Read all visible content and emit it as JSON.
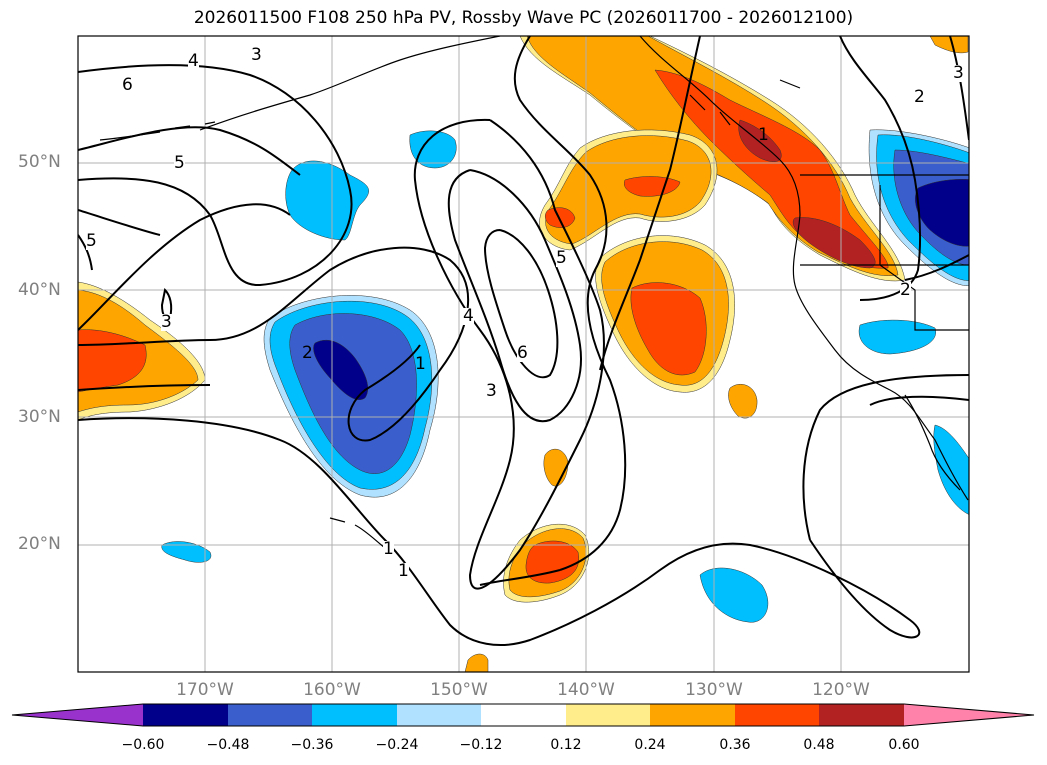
{
  "title": "2026011500 F108 250 hPa PV, Rossby Wave PC (2026011700 - 2026012100)",
  "lat_labels": [
    "50°N",
    "40°N",
    "30°N",
    "20°N"
  ],
  "lon_labels": [
    "170°W",
    "160°W",
    "150°W",
    "140°W",
    "130°W",
    "120°W"
  ],
  "contour_labels": {
    "c1": "4",
    "c2": "3",
    "c3": "6",
    "c4": "5",
    "c5": "5",
    "c6": "3",
    "c7": "5",
    "c8": "4",
    "c9": "6",
    "c10": "3",
    "c11": "2",
    "c12": "2",
    "c13": "3",
    "c14": "1",
    "c15": "1",
    "c16": "2",
    "c17": "1",
    "c18": "1"
  },
  "colorbar": {
    "ticks": [
      "−0.60",
      "−0.48",
      "−0.36",
      "−0.24",
      "−0.12",
      "0.12",
      "0.24",
      "0.36",
      "0.48",
      "0.60"
    ],
    "colors": [
      "#9932cc",
      "#00008b",
      "#3a5fcd",
      "#00bfff",
      "#b0e2ff",
      "#ffffff",
      "#ffec8b",
      "#ffa500",
      "#ff4500",
      "#b22222",
      "#ff82ab"
    ]
  },
  "shading_colors": {
    "neg_weak": "#b0e2ff",
    "neg1": "#00bfff",
    "neg2": "#3a5fcd",
    "neg3": "#00008b",
    "pos_weak": "#ffec8b",
    "pos1": "#ffa500",
    "pos2": "#ff4500",
    "pos3": "#b22222"
  }
}
